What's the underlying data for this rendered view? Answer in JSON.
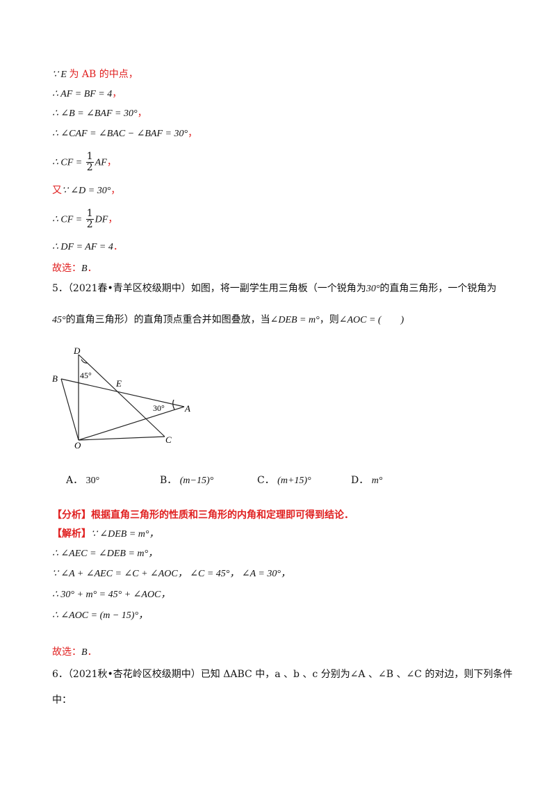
{
  "solution_prev": [
    {
      "math": "∵ E ",
      "text": "为 AB 的中点，"
    },
    {
      "math": "∴ AF = BF = 4",
      "text": "，"
    },
    {
      "math": "∴ ∠B = ∠BAF = 30°",
      "text": "，"
    },
    {
      "math": "∴ ∠CAF = ∠BAC − ∠BAF = 30°",
      "text": "，"
    },
    {
      "pre": "∴ CF = ",
      "num": "1",
      "den": "2",
      "post": "AF",
      "text": "，"
    },
    {
      "lead": "又",
      "math": "∵ ∠D = 30°",
      "text": "，"
    },
    {
      "pre": "∴ CF = ",
      "num": "1",
      "den": "2",
      "post": "DF",
      "text": "，"
    },
    {
      "math": "∴ DF = AF = 4",
      "text": "．"
    }
  ],
  "answer_prev": {
    "label": "故选：",
    "value": "B",
    "end": "．"
  },
  "q5": {
    "number": "5．",
    "source": "（2021春•青羊区校级期中）",
    "line1": "如图，将一副学生用三角板（一个锐角为",
    "angle30": "30°",
    "line1b": "的直角三角形，一个锐角为",
    "angle45": "45°",
    "line2": "的直角三角形）的直角顶点重合并如图叠放，当",
    "cond": "∠DEB = m°",
    "line2b": "，则",
    "ask": "∠AOC = (　　)"
  },
  "figure": {
    "points": {
      "D": "D",
      "B": "B",
      "E": "E",
      "A": "A",
      "O": "O",
      "C": "C"
    },
    "angle_labels": [
      "45°",
      "30°"
    ]
  },
  "options": [
    {
      "letter": "A．",
      "value": "30°"
    },
    {
      "letter": "B．",
      "value": "(m−15)°"
    },
    {
      "letter": "C．",
      "value": "(m+15)°"
    },
    {
      "letter": "D．",
      "value": "m°"
    }
  ],
  "analysis": {
    "tag": "【分析】",
    "text": "根据直角三角形的性质和三角形的内角和定理即可得到结论．"
  },
  "solution_tag": "【解析】",
  "solution": [
    "∵ ∠DEB = m°，",
    "∴ ∠AEC = ∠DEB = m°，",
    "∵ ∠A + ∠AEC = ∠C + ∠AOC，  ∠C = 45°，  ∠A = 30°，",
    "∴ 30° + m° = 45° + ∠AOC，",
    "∴ ∠AOC = (m − 15)°，"
  ],
  "answer": {
    "label": "故选：",
    "value": "B",
    "end": "．"
  },
  "q6": {
    "number": "6．",
    "source": "（2021秋•杏花岭区校级期中）",
    "text1": "已知 ΔABC 中，a 、b 、c 分别为∠A 、∠B 、∠C 的对边，则下列条件",
    "text2": "中："
  }
}
